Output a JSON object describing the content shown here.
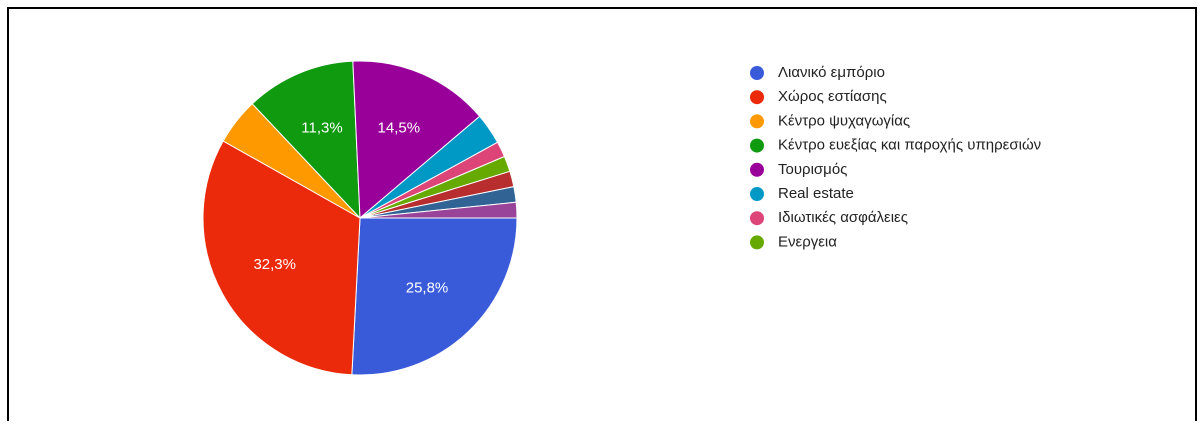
{
  "chart_data": {
    "type": "pie",
    "categories": [
      "Λιανικό εμπόριο",
      "Χώρος εστίασης",
      "Κέντρο ψυχαγωγίας",
      "Κέντρο ευεξίας και παροχής υπηρεσιών",
      "Τουρισμός",
      "Real estate",
      "Ιδιωτικές ασφάλειες",
      "Ενεργεια",
      null,
      null,
      null
    ],
    "values": [
      25.8,
      32.3,
      4.8,
      11.3,
      14.5,
      3.2,
      1.6,
      1.6,
      1.6,
      1.6,
      1.6
    ],
    "value_labels": [
      "25,8%",
      "32,3%",
      null,
      "11,3%",
      "14,5%",
      null,
      null,
      null,
      null,
      null,
      null
    ],
    "colors": [
      "#3a5bd9",
      "#ea2a0b",
      "#ff9900",
      "#0f9a0f",
      "#990099",
      "#0099c6",
      "#dd4477",
      "#66aa00",
      "#b82e2e",
      "#316395",
      "#994499"
    ],
    "legend": "right"
  }
}
